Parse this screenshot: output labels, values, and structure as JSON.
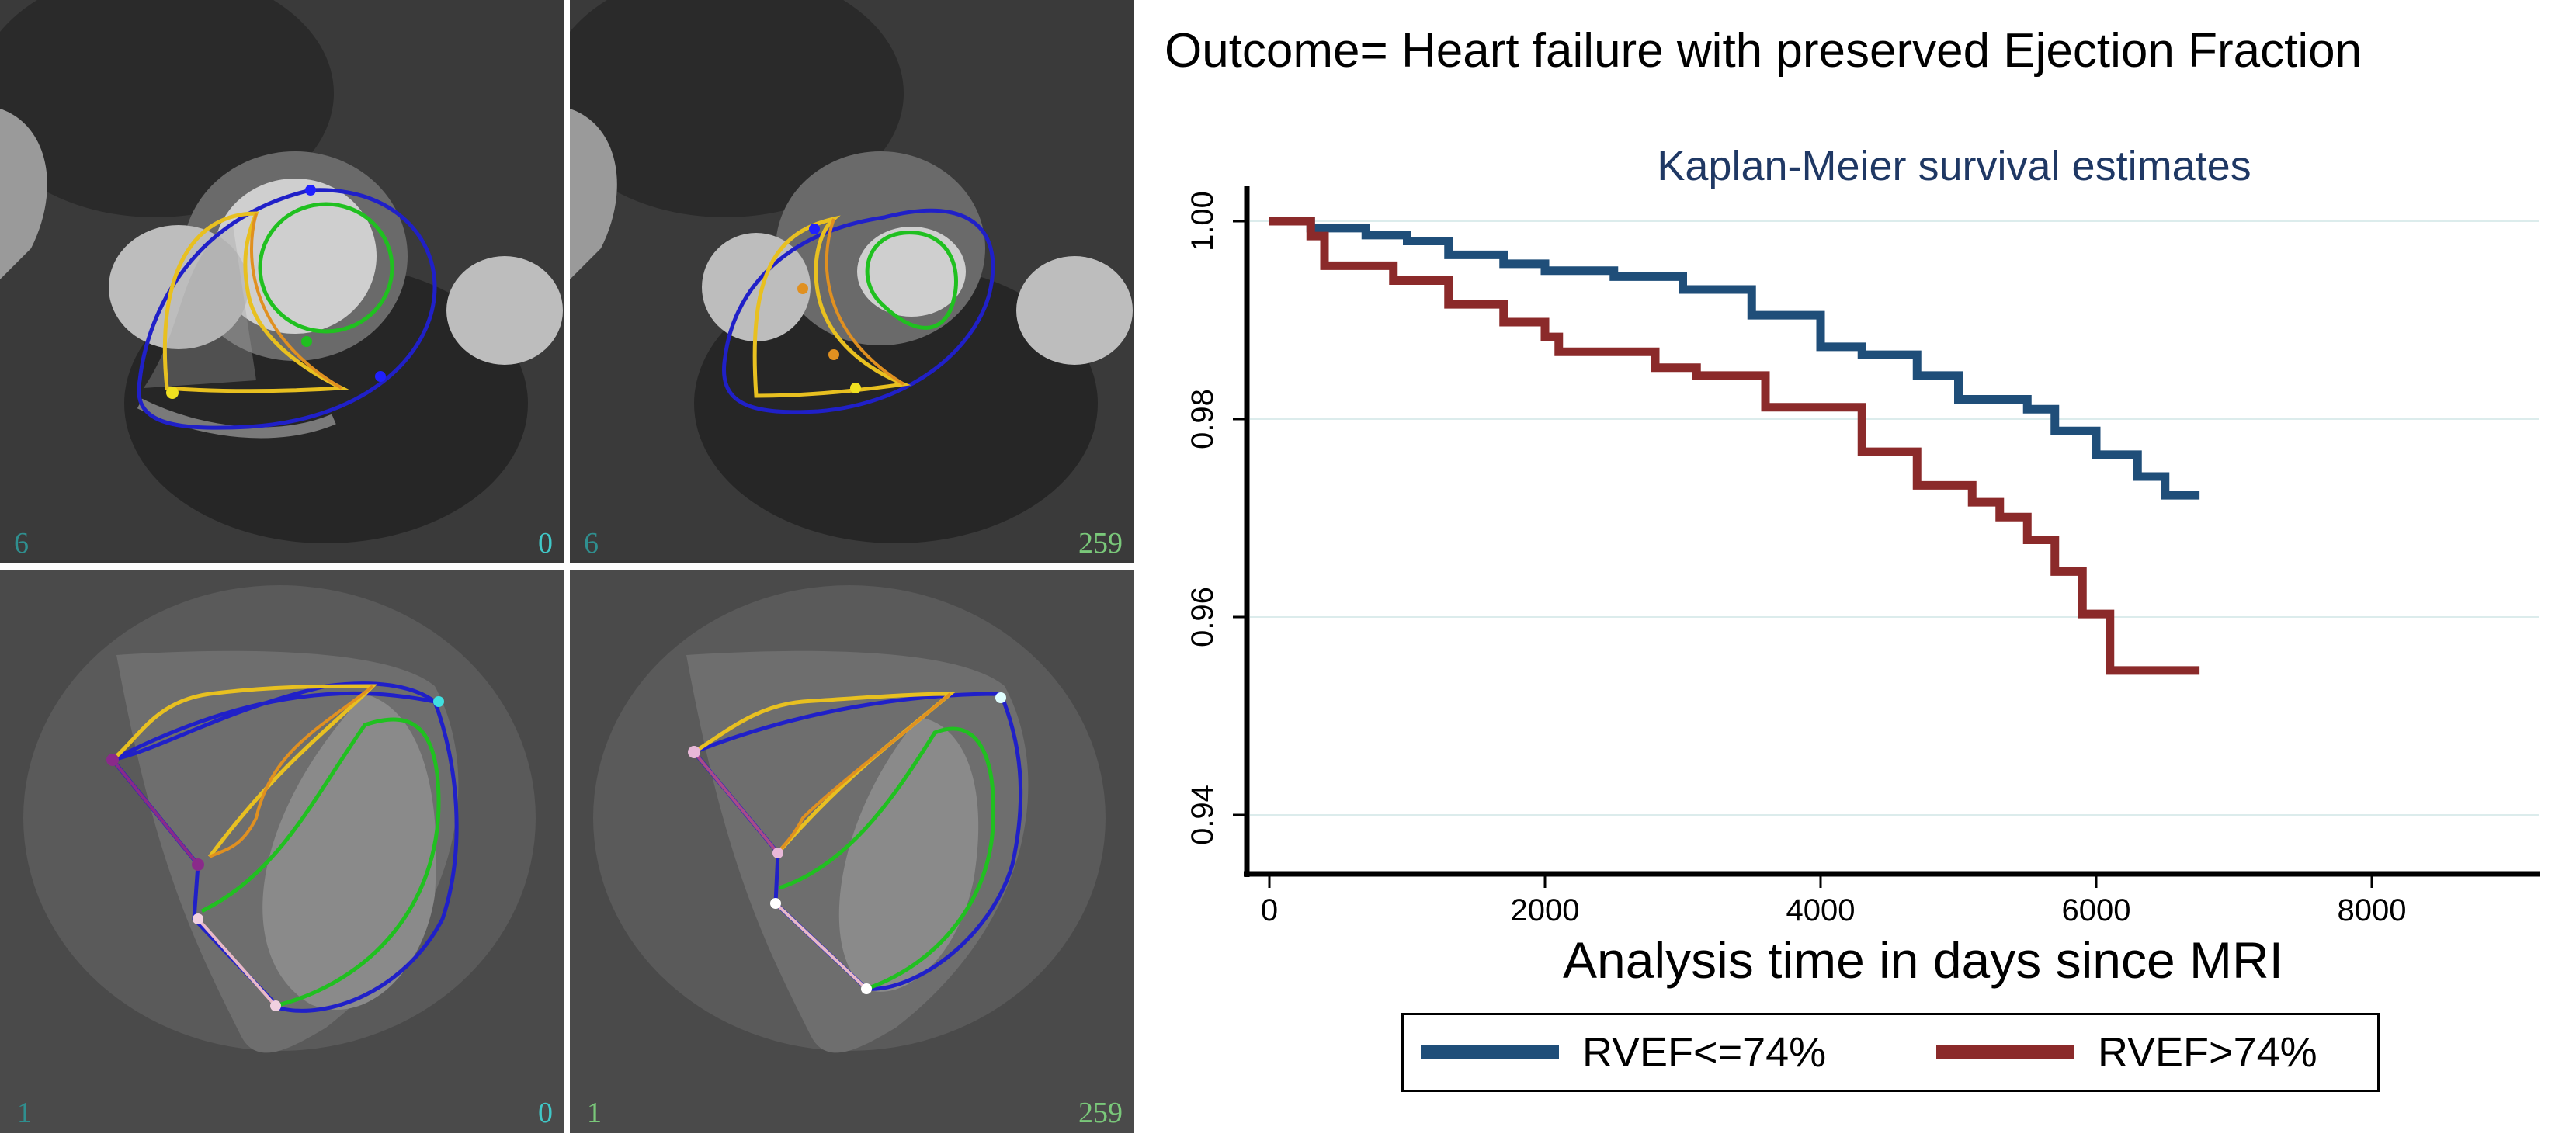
{
  "mri": {
    "panels": [
      {
        "id": "sax-ed",
        "left_label": "6",
        "right_label": "0"
      },
      {
        "id": "sax-es",
        "left_label": "6",
        "right_label": "259"
      },
      {
        "id": "lax-ed",
        "left_label": "1",
        "right_label": "0"
      },
      {
        "id": "lax-es",
        "left_label": "1",
        "right_label": "259"
      }
    ],
    "contour_colors": {
      "epicardium": "#2020c8",
      "rv_endo": "#e8c020",
      "septum": "#e09020",
      "lv_endo": "#20c020",
      "annulus": "#8a2a8a",
      "annulus_pink": "#e8b8c8",
      "anchor_cyan": "#40e0e0"
    }
  },
  "outcome_title": "Outcome= Heart failure with preserved Ejection Fraction",
  "chart_data": {
    "type": "line",
    "step": true,
    "title": "Kaplan-Meier survival estimates",
    "xlabel": "Analysis time in days since MRI",
    "ylabel": "",
    "xlim": [
      0,
      8000
    ],
    "ylim": [
      0.94,
      1.0
    ],
    "xticks": [
      0,
      2000,
      4000,
      6000,
      8000
    ],
    "yticks": [
      0.94,
      0.96,
      0.98,
      1.0
    ],
    "ytick_labels": [
      "0.94",
      "0.96",
      "0.98",
      "1.00"
    ],
    "xtick_labels": [
      "0",
      "2000",
      "4000",
      "6000",
      "8000"
    ],
    "grid": "horizontal",
    "legend_position": "bottom",
    "series": [
      {
        "name": "RVEF<=74%",
        "color": "#1f4e79",
        "points": [
          [
            0,
            1.0
          ],
          [
            300,
            0.9993
          ],
          [
            700,
            0.9986
          ],
          [
            1000,
            0.998
          ],
          [
            1300,
            0.9966
          ],
          [
            1700,
            0.9957
          ],
          [
            2000,
            0.995
          ],
          [
            2500,
            0.9944
          ],
          [
            3000,
            0.9931
          ],
          [
            3500,
            0.9905
          ],
          [
            4000,
            0.9873
          ],
          [
            4300,
            0.9865
          ],
          [
            4700,
            0.9844
          ],
          [
            5000,
            0.982
          ],
          [
            5500,
            0.981
          ],
          [
            5700,
            0.9788
          ],
          [
            6000,
            0.9764
          ],
          [
            6300,
            0.9742
          ],
          [
            6500,
            0.9723
          ],
          [
            6750,
            0.9723
          ]
        ]
      },
      {
        "name": "RVEF>74%",
        "color": "#8b2a2a",
        "points": [
          [
            0,
            1.0
          ],
          [
            300,
            0.9985
          ],
          [
            400,
            0.9955
          ],
          [
            900,
            0.994
          ],
          [
            1300,
            0.9916
          ],
          [
            1700,
            0.9898
          ],
          [
            2000,
            0.9883
          ],
          [
            2100,
            0.9868
          ],
          [
            2800,
            0.9852
          ],
          [
            3100,
            0.9844
          ],
          [
            3600,
            0.9812
          ],
          [
            4300,
            0.9767
          ],
          [
            4700,
            0.9733
          ],
          [
            5100,
            0.9716
          ],
          [
            5300,
            0.9701
          ],
          [
            5500,
            0.9678
          ],
          [
            5700,
            0.9646
          ],
          [
            5900,
            0.9603
          ],
          [
            6100,
            0.9546
          ],
          [
            6750,
            0.9546
          ]
        ]
      }
    ]
  }
}
